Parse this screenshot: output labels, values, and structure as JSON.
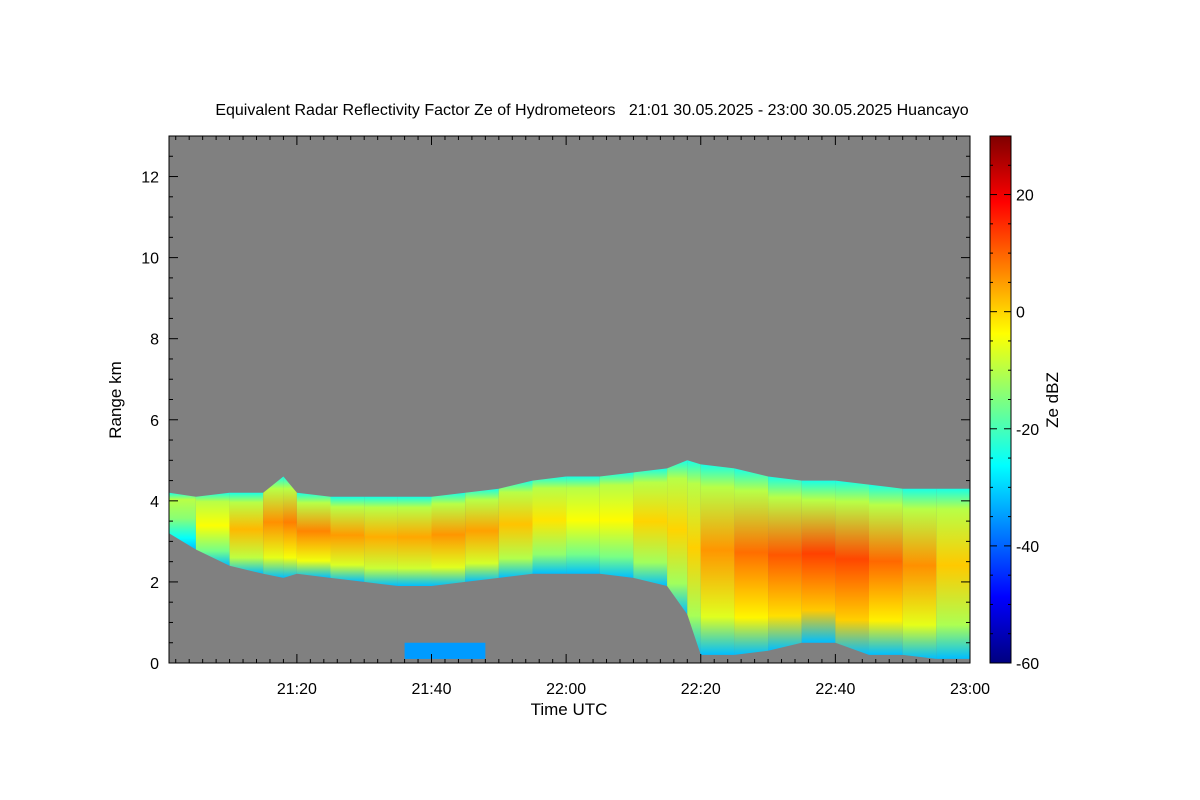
{
  "chart_data": {
    "type": "heatmap",
    "title": "Equivalent Radar Reflectivity Factor Ze of Hydrometeors   21:01 30.05.2025 - 23:00 30.05.2025 Huancayo",
    "xlabel": "Time UTC",
    "ylabel": "Range km",
    "xlim": [
      "21:01",
      "23:00"
    ],
    "ylim": [
      0,
      13
    ],
    "x_ticks": [
      "21:20",
      "21:40",
      "22:00",
      "22:20",
      "22:40",
      "23:00"
    ],
    "y_ticks": [
      0,
      2,
      4,
      6,
      8,
      10,
      12
    ],
    "no_data_color": "#808080",
    "colorbar": {
      "label": "Ze dBZ",
      "range": [
        -60,
        30
      ],
      "ticks": [
        -60,
        -40,
        -20,
        0,
        20
      ],
      "colormap": "jet",
      "stops": [
        "#00007f",
        "#0000ff",
        "#007fff",
        "#00ffff",
        "#7fff7f",
        "#ffff00",
        "#ff7f00",
        "#ff0000",
        "#7f0000"
      ]
    },
    "cloud_layer": {
      "time": [
        "21:01",
        "21:05",
        "21:10",
        "21:15",
        "21:18",
        "21:20",
        "21:25",
        "21:30",
        "21:35",
        "21:40",
        "21:45",
        "21:50",
        "21:55",
        "22:00",
        "22:05",
        "22:10",
        "22:15",
        "22:18",
        "22:20",
        "22:25",
        "22:30",
        "22:35",
        "22:40",
        "22:45",
        "22:50",
        "22:55",
        "23:00"
      ],
      "top_km": [
        4.2,
        4.1,
        4.2,
        4.2,
        4.6,
        4.2,
        4.1,
        4.1,
        4.1,
        4.1,
        4.2,
        4.3,
        4.5,
        4.6,
        4.6,
        4.7,
        4.8,
        5.0,
        4.9,
        4.8,
        4.6,
        4.5,
        4.5,
        4.4,
        4.3,
        4.3,
        4.3
      ],
      "base_km": [
        3.2,
        2.8,
        2.4,
        2.2,
        2.1,
        2.2,
        2.1,
        2.0,
        1.9,
        1.9,
        2.0,
        2.1,
        2.2,
        2.2,
        2.2,
        2.1,
        1.9,
        1.2,
        0.2,
        0.2,
        0.3,
        0.5,
        0.5,
        0.2,
        0.2,
        0.1,
        0.1
      ],
      "peak_dbz": [
        -20,
        -8,
        0,
        5,
        7,
        8,
        6,
        4,
        3,
        5,
        6,
        3,
        0,
        -3,
        -5,
        -2,
        2,
        -2,
        3,
        8,
        10,
        12,
        14,
        11,
        8,
        4,
        -2
      ]
    },
    "low_echoes": [
      {
        "time": [
          "21:36",
          "21:48"
        ],
        "range_km": [
          0.1,
          0.5
        ],
        "dbz": -35
      }
    ]
  }
}
